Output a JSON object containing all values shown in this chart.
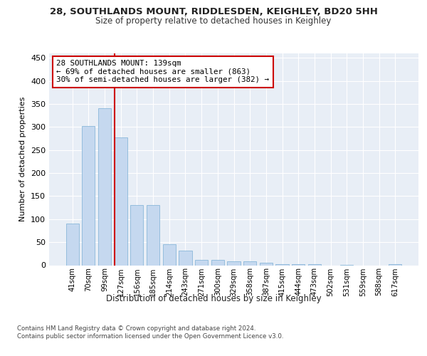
{
  "title1": "28, SOUTHLANDS MOUNT, RIDDLESDEN, KEIGHLEY, BD20 5HH",
  "title2": "Size of property relative to detached houses in Keighley",
  "xlabel": "Distribution of detached houses by size in Keighley",
  "ylabel": "Number of detached properties",
  "categories": [
    "41sqm",
    "70sqm",
    "99sqm",
    "127sqm",
    "156sqm",
    "185sqm",
    "214sqm",
    "243sqm",
    "271sqm",
    "300sqm",
    "329sqm",
    "358sqm",
    "387sqm",
    "415sqm",
    "444sqm",
    "473sqm",
    "502sqm",
    "531sqm",
    "559sqm",
    "588sqm",
    "617sqm"
  ],
  "values": [
    91,
    303,
    341,
    277,
    131,
    131,
    46,
    31,
    12,
    12,
    9,
    9,
    5,
    2,
    2,
    2,
    0,
    1,
    0,
    0,
    2
  ],
  "bar_color": "#c5d8ef",
  "bar_edge_color": "#7bafd4",
  "background_color": "#e8eef6",
  "grid_color": "#ffffff",
  "vline_color": "#cc0000",
  "annotation_line1": "28 SOUTHLANDS MOUNT: 139sqm",
  "annotation_line2": "← 69% of detached houses are smaller (863)",
  "annotation_line3": "30% of semi-detached houses are larger (382) →",
  "annotation_box_color": "#ffffff",
  "annotation_box_edge": "#cc0000",
  "footer_text": "Contains HM Land Registry data © Crown copyright and database right 2024.\nContains public sector information licensed under the Open Government Licence v3.0.",
  "ylim": [
    0,
    460
  ],
  "yticks": [
    0,
    50,
    100,
    150,
    200,
    250,
    300,
    350,
    400,
    450
  ]
}
